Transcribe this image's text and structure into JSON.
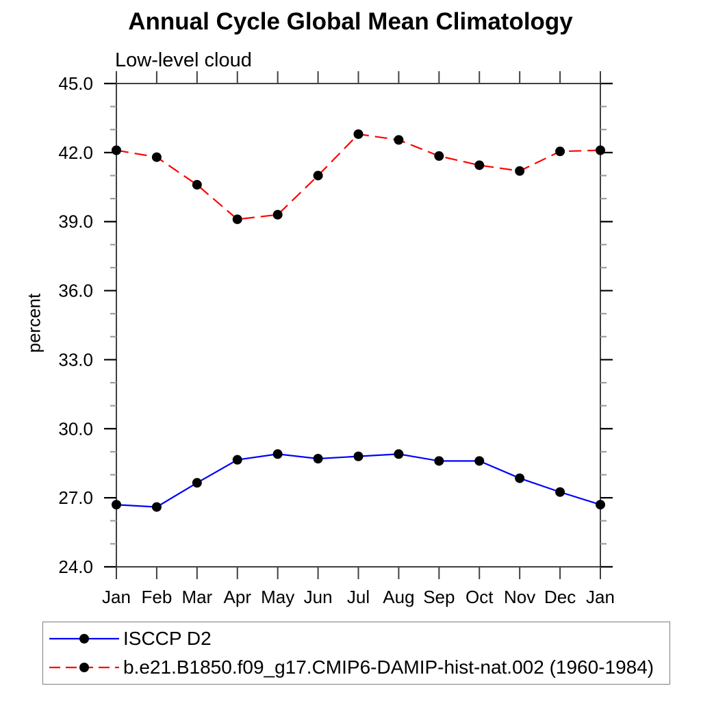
{
  "page": {
    "title": "Annual Cycle Global Mean Climatology",
    "subtitle": "Low-level cloud"
  },
  "chart_data": {
    "type": "line",
    "title": "Annual Cycle Global Mean Climatology",
    "subtitle": "Low-level cloud",
    "xlabel": "",
    "ylabel": "percent",
    "x_tick_labels": [
      "Jan",
      "Feb",
      "Mar",
      "Apr",
      "May",
      "Jun",
      "Jul",
      "Aug",
      "Sep",
      "Oct",
      "Nov",
      "Dec",
      "Jan"
    ],
    "ylim": [
      24.0,
      45.0
    ],
    "y_major_step": 3.0,
    "y_minor_step": 1.0,
    "y_tick_labels": [
      "24.0",
      "27.0",
      "30.0",
      "33.0",
      "36.0",
      "39.0",
      "42.0",
      "45.0"
    ],
    "grid": false,
    "legend_position": "bottom-left-box",
    "marker_color": "#000000",
    "series": [
      {
        "name": "ISCCP D2",
        "color": "#0000ff",
        "line_style": "solid",
        "marker": "circle",
        "values": [
          26.7,
          26.6,
          27.65,
          28.65,
          28.9,
          28.7,
          28.8,
          28.9,
          28.6,
          28.6,
          27.85,
          27.25,
          26.7
        ]
      },
      {
        "name": "b.e21.B1850.f09_g17.CMIP6-DAMIP-hist-nat.002 (1960-1984)",
        "color": "#ff0000",
        "line_style": "dashed",
        "marker": "circle",
        "values": [
          42.1,
          41.8,
          40.6,
          39.1,
          39.3,
          41.0,
          42.8,
          42.55,
          41.85,
          41.45,
          41.2,
          42.05,
          42.1
        ]
      }
    ]
  }
}
